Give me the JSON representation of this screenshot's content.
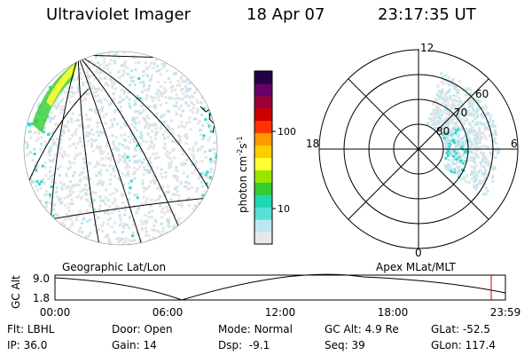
{
  "header": {
    "title": "Ultraviolet Imager",
    "date": "18 Apr 07",
    "time": "23:17:35 UT"
  },
  "colorbar": {
    "label_main": "photon cm",
    "label_sup1": "-2",
    "label_s": "s",
    "label_sup2": "-1",
    "ticks": [
      {
        "label": "100",
        "value": 100
      },
      {
        "label": "10",
        "value": 10
      }
    ],
    "scale": "log",
    "colors": [
      "#e8e8e8",
      "#bfe6f0",
      "#55e0d8",
      "#22d6b0",
      "#33cc33",
      "#99e600",
      "#ffff33",
      "#ffcc00",
      "#ff9900",
      "#ff3300",
      "#cc0000",
      "#990033",
      "#660066",
      "#220044"
    ]
  },
  "geo_map": {
    "label": "Geographic Lat/Lon"
  },
  "polar_map": {
    "label": "Apex MLat/MLT",
    "mlt_labels": {
      "top": "12",
      "bottom": "0",
      "left": "18",
      "right": "6"
    },
    "lat_labels": [
      "60",
      "70",
      "80"
    ]
  },
  "altitude_plot": {
    "ylabel": "GC Alt",
    "yticks": [
      "9.0",
      "1.8"
    ],
    "xticks": [
      "00:00",
      "06:00",
      "12:00",
      "18:00",
      "23:59"
    ],
    "curve_color": "#000000",
    "marker_color": "#cc0000",
    "marker_time": "23:17:35"
  },
  "info": {
    "flt_label": "Flt:",
    "flt_value": "LBHL",
    "door_label": "Door:",
    "door_value": "Open",
    "mode_label": "Mode:",
    "mode_value": "Normal",
    "gcalt_label": "GC Alt:",
    "gcalt_value": "4.9 Re",
    "glat_label": "GLat:",
    "glat_value": "-52.5",
    "ip_label": "IP:",
    "ip_value": "36.0",
    "gain_label": "Gain:",
    "gain_value": "14",
    "dsp_label": "Dsp:",
    "dsp_value": "-9.1",
    "seq_label": "Seq:",
    "seq_value": "39",
    "glon_label": "GLon:",
    "glon_value": "117.4"
  }
}
